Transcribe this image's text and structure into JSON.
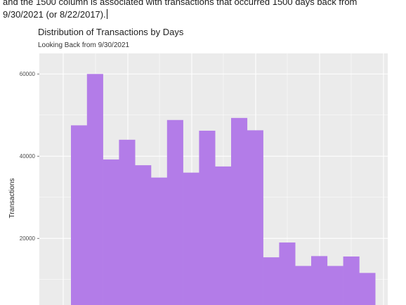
{
  "intro": {
    "line1": "and the 1500 column is associated with transactions that occurred 1500 days back from",
    "line2": "9/30/2021 (or 8/22/2017)."
  },
  "chart_data": {
    "type": "bar",
    "title": "Distribution of Transactions by Days",
    "subtitle": "Looking Back from 9/30/2021",
    "ylabel": "Transactions",
    "xlabel": "",
    "y_ticks": [
      "20000",
      "40000",
      "60000"
    ],
    "y_tick_values": [
      20000,
      40000,
      60000
    ],
    "ylim_visible": [
      3800,
      65000
    ],
    "values": [
      47500,
      60000,
      39200,
      44000,
      37800,
      34800,
      48800,
      36000,
      46200,
      37500,
      49300,
      46300,
      15400,
      19000,
      13300,
      15700,
      13300,
      15600,
      11600
    ],
    "bar_color": "#b37ce8",
    "panel_background": "#ebebeb",
    "grid": true
  }
}
